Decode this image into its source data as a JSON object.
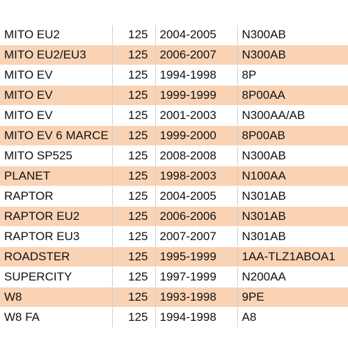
{
  "table": {
    "rows": [
      {
        "model": "MITO EU2",
        "cc": "125",
        "years": "2004-2005",
        "code": "N300AB"
      },
      {
        "model": "MITO EU2/EU3",
        "cc": "125",
        "years": "2006-2007",
        "code": "N300AB"
      },
      {
        "model": "MITO EV",
        "cc": "125",
        "years": "1994-1998",
        "code": "8P"
      },
      {
        "model": "MITO EV",
        "cc": "125",
        "years": "1999-1999",
        "code": "8P00AA"
      },
      {
        "model": "MITO EV",
        "cc": "125",
        "years": "2001-2003",
        "code": "N300AA/AB"
      },
      {
        "model": "MITO EV 6 MARCE",
        "cc": "125",
        "years": "1999-2000",
        "code": "8P00AB"
      },
      {
        "model": "MITO SP525",
        "cc": "125",
        "years": "2008-2008",
        "code": "N300AB"
      },
      {
        "model": "PLANET",
        "cc": "125",
        "years": "1998-2003",
        "code": "N100AA"
      },
      {
        "model": "RAPTOR",
        "cc": "125",
        "years": "2004-2005",
        "code": "N301AB"
      },
      {
        "model": "RAPTOR EU2",
        "cc": "125",
        "years": "2006-2006",
        "code": "N301AB"
      },
      {
        "model": "RAPTOR EU3",
        "cc": "125",
        "years": "2007-2007",
        "code": "N301AB"
      },
      {
        "model": "ROADSTER",
        "cc": "125",
        "years": "1995-1999",
        "code": "1AA-TLZ1ABOA1"
      },
      {
        "model": "SUPERCITY",
        "cc": "125",
        "years": "1997-1999",
        "code": "N200AA"
      },
      {
        "model": "W8",
        "cc": "125",
        "years": "1993-1998",
        "code": "9PE"
      },
      {
        "model": "W8 FA",
        "cc": "125",
        "years": "1994-1998",
        "code": "A8"
      }
    ]
  },
  "colors": {
    "stripe": "#fad3b5",
    "background": "#ffffff",
    "divider": "#cfcfcf"
  }
}
